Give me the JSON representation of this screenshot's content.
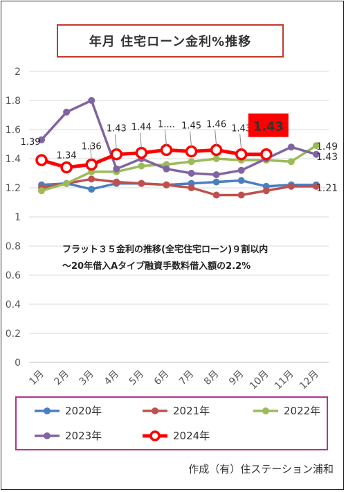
{
  "chart_data": {
    "type": "line",
    "title": "年月 住宅ローン金利%推移",
    "annotation": [
      "フラット３５金利の推移(全宅住宅ローン)９割以内",
      "～20年借入Aタイプ融資手数料借入額の2.2%"
    ],
    "categories": [
      "1月",
      "2月",
      "3月",
      "4月",
      "5月",
      "6月",
      "7月",
      "8月",
      "9月",
      "10月",
      "11月",
      "12月"
    ],
    "ylim": [
      0,
      2
    ],
    "yticks": [
      "0",
      "0.2",
      "0.4",
      "0.6",
      "0.8",
      "1",
      "1.2",
      "1.4",
      "1.6",
      "1.8",
      "2"
    ],
    "legend_position": "bottom",
    "series": [
      {
        "name": "2020年",
        "color": "#4a7fc0",
        "values": [
          1.22,
          1.23,
          1.19,
          1.23,
          1.23,
          1.22,
          1.23,
          1.24,
          1.25,
          1.21,
          1.22,
          1.22
        ]
      },
      {
        "name": "2021年",
        "color": "#c0504d",
        "values": [
          1.2,
          1.23,
          1.26,
          1.24,
          1.23,
          1.22,
          1.2,
          1.15,
          1.15,
          1.18,
          1.21,
          1.21
        ]
      },
      {
        "name": "2022年",
        "color": "#9bbb59",
        "values": [
          1.18,
          1.23,
          1.31,
          1.31,
          1.35,
          1.36,
          1.38,
          1.4,
          1.39,
          1.39,
          1.38,
          1.49
        ]
      },
      {
        "name": "2023年",
        "color": "#8064a2",
        "values": [
          1.53,
          1.72,
          1.8,
          1.33,
          1.4,
          1.33,
          1.3,
          1.29,
          1.32,
          1.4,
          1.48,
          1.43
        ]
      },
      {
        "name": "2024年",
        "color": "#ff0000",
        "values": [
          1.39,
          1.34,
          1.36,
          1.43,
          1.44,
          1.46,
          1.45,
          1.46,
          1.43,
          1.43,
          null,
          null
        ]
      }
    ],
    "data_labels": {
      "series_2024": [
        "1.39",
        "1.34",
        "1.36",
        "1.43",
        "1.44",
        "1....",
        "1.45",
        "1.46",
        "1.43",
        "1.43"
      ],
      "end_labels": [
        "1.49",
        "1.43",
        "1.21"
      ]
    }
  },
  "footer": "作成（有）住ステーション浦和"
}
